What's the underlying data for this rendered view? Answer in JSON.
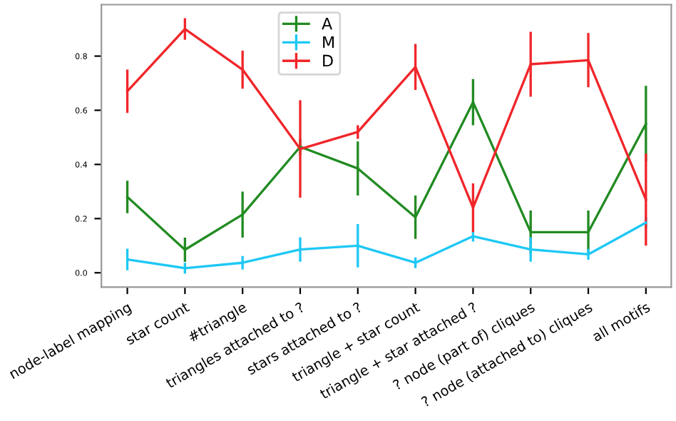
{
  "chart_data": {
    "type": "line",
    "categories": [
      "node-label mapping",
      "star count",
      "#triangle",
      "triangles attached to ?",
      "stars attached to ?",
      "triangle + star count",
      "triangle + star attached ?",
      "? node (part of) cliques",
      "? node (attached to) cliques",
      "all motifs"
    ],
    "series": [
      {
        "name": "A",
        "color": "#228b22",
        "values": [
          0.28,
          0.085,
          0.215,
          0.465,
          0.385,
          0.205,
          0.63,
          0.15,
          0.15,
          0.55
        ],
        "errors": [
          0.06,
          0.045,
          0.085,
          0.03,
          0.1,
          0.08,
          0.085,
          0.08,
          0.08,
          0.14
        ]
      },
      {
        "name": "M",
        "color": "#1ec8f5",
        "values": [
          0.049,
          0.017,
          0.037,
          0.086,
          0.1,
          0.037,
          0.135,
          0.086,
          0.068,
          0.185
        ],
        "errors": [
          0.04,
          0.02,
          0.025,
          0.045,
          0.08,
          0.02,
          0.02,
          0.045,
          0.02,
          0.02
        ]
      },
      {
        "name": "D",
        "color": "#f0262a",
        "values": [
          0.67,
          0.9,
          0.75,
          0.457,
          0.52,
          0.76,
          0.24,
          0.77,
          0.785,
          0.27
        ],
        "errors": [
          0.08,
          0.04,
          0.07,
          0.18,
          0.025,
          0.085,
          0.09,
          0.12,
          0.1,
          0.17
        ]
      }
    ],
    "ylim": [
      -0.053,
      0.99
    ],
    "yticks": [
      {
        "value": 0,
        "label": "0.0"
      },
      0.2,
      0.4,
      0.6,
      0.8
    ],
    "legend": "top",
    "grid": false,
    "marker": "none",
    "line_style": "solid"
  }
}
